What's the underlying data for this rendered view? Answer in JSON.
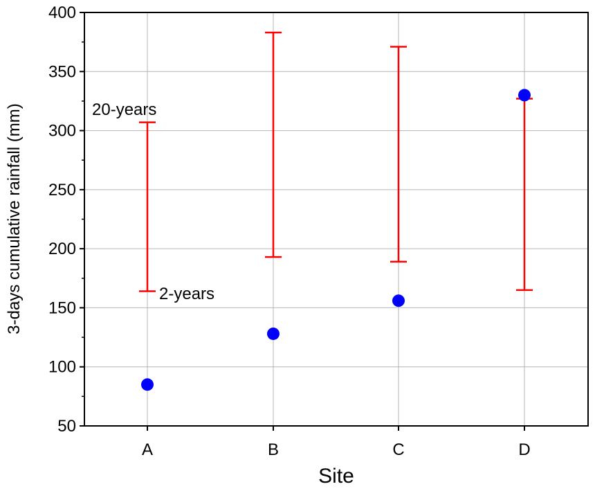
{
  "chart_data": {
    "type": "scatter",
    "xlabel": "Site",
    "ylabel": "3-days cumulative rainfall (mm)",
    "categories": [
      "A",
      "B",
      "C",
      "D"
    ],
    "ylim": [
      50,
      400
    ],
    "yticks": [
      50,
      100,
      150,
      200,
      250,
      300,
      350,
      400
    ],
    "grid": true,
    "points": [
      85,
      128,
      156,
      330
    ],
    "ranges": [
      {
        "low": 164,
        "high": 307
      },
      {
        "low": 193,
        "high": 383
      },
      {
        "low": 189,
        "high": 371
      },
      {
        "low": 165,
        "high": 327
      }
    ],
    "annotations": {
      "high_label": "20-years",
      "low_label": "2-years"
    },
    "colors": {
      "points": "#0000ff",
      "ranges": "#ff0000",
      "grid": "#b4b4b4",
      "axis": "#000000"
    }
  }
}
